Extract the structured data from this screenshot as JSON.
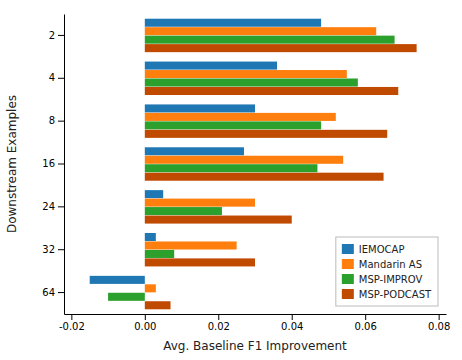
{
  "chart_data": {
    "type": "bar",
    "orientation": "horizontal",
    "categories": [
      "2",
      "4",
      "8",
      "16",
      "24",
      "32",
      "64"
    ],
    "series": [
      {
        "name": "IEMOCAP",
        "color": "#1f77b4",
        "values": [
          0.048,
          0.036,
          0.03,
          0.027,
          0.005,
          0.003,
          -0.015
        ]
      },
      {
        "name": "Mandarin AS",
        "color": "#ff7f0e",
        "values": [
          0.063,
          0.055,
          0.052,
          0.054,
          0.03,
          0.025,
          0.003
        ]
      },
      {
        "name": "MSP-IMPROV",
        "color": "#2ca02c",
        "values": [
          0.068,
          0.058,
          0.048,
          0.047,
          0.021,
          0.008,
          -0.01
        ]
      },
      {
        "name": "MSP-PODCAST",
        "color": "#c04a00",
        "values": [
          0.074,
          0.069,
          0.066,
          0.065,
          0.04,
          0.03,
          0.007
        ]
      }
    ],
    "xlabel": "Avg. Baseline F1 Improvement",
    "ylabel": "Downstream Examples",
    "xlim": [
      -0.022,
      0.082
    ],
    "xticks": [
      -0.02,
      {
        "value": 0,
        "label": "0.00"
      },
      0.02,
      0.04,
      0.06,
      0.08
    ],
    "legend": "lower right",
    "grid": false
  }
}
